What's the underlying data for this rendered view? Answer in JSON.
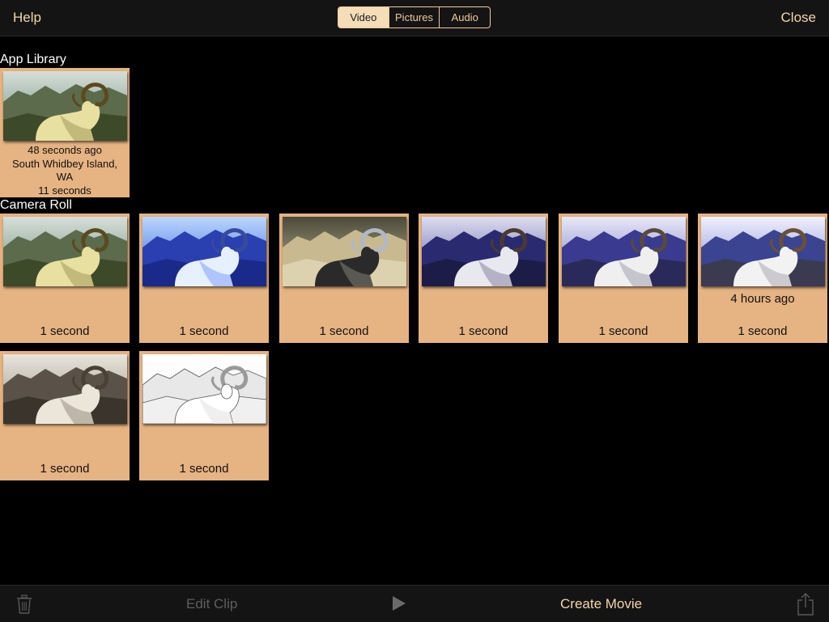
{
  "header": {
    "help_label": "Help",
    "close_label": "Close",
    "segments": [
      "Video",
      "Pictures",
      "Audio"
    ],
    "active_segment": "Video"
  },
  "app_library": {
    "title": "App Library",
    "clip": {
      "time_ago": "48 seconds ago",
      "location_line1": "South Whidbey Island,",
      "location_line2": "WA",
      "duration": "11 seconds"
    }
  },
  "camera_roll": {
    "title": "Camera Roll",
    "clips": [
      {
        "filter": "sepia-color",
        "time_ago": "",
        "duration": "1 second"
      },
      {
        "filter": "blue",
        "time_ago": "",
        "duration": "1 second"
      },
      {
        "filter": "inverted",
        "time_ago": "",
        "duration": "1 second"
      },
      {
        "filter": "dark-purple",
        "time_ago": "",
        "duration": "1 second"
      },
      {
        "filter": "purple",
        "time_ago": "",
        "duration": "1 second"
      },
      {
        "filter": "natural",
        "time_ago": "4 hours ago",
        "duration": "1 second"
      },
      {
        "filter": "bw-sepia",
        "time_ago": "",
        "duration": "1 second"
      },
      {
        "filter": "sketch",
        "time_ago": "",
        "duration": "1 second"
      }
    ]
  },
  "footer": {
    "edit_clip_label": "Edit Clip",
    "create_movie_label": "Create Movie",
    "icons": [
      "trash-icon",
      "play-icon",
      "share-icon"
    ]
  },
  "colors": {
    "accent": "#f4d6a6",
    "tile_bg": "#e6b382",
    "bar_bg": "#141414"
  }
}
